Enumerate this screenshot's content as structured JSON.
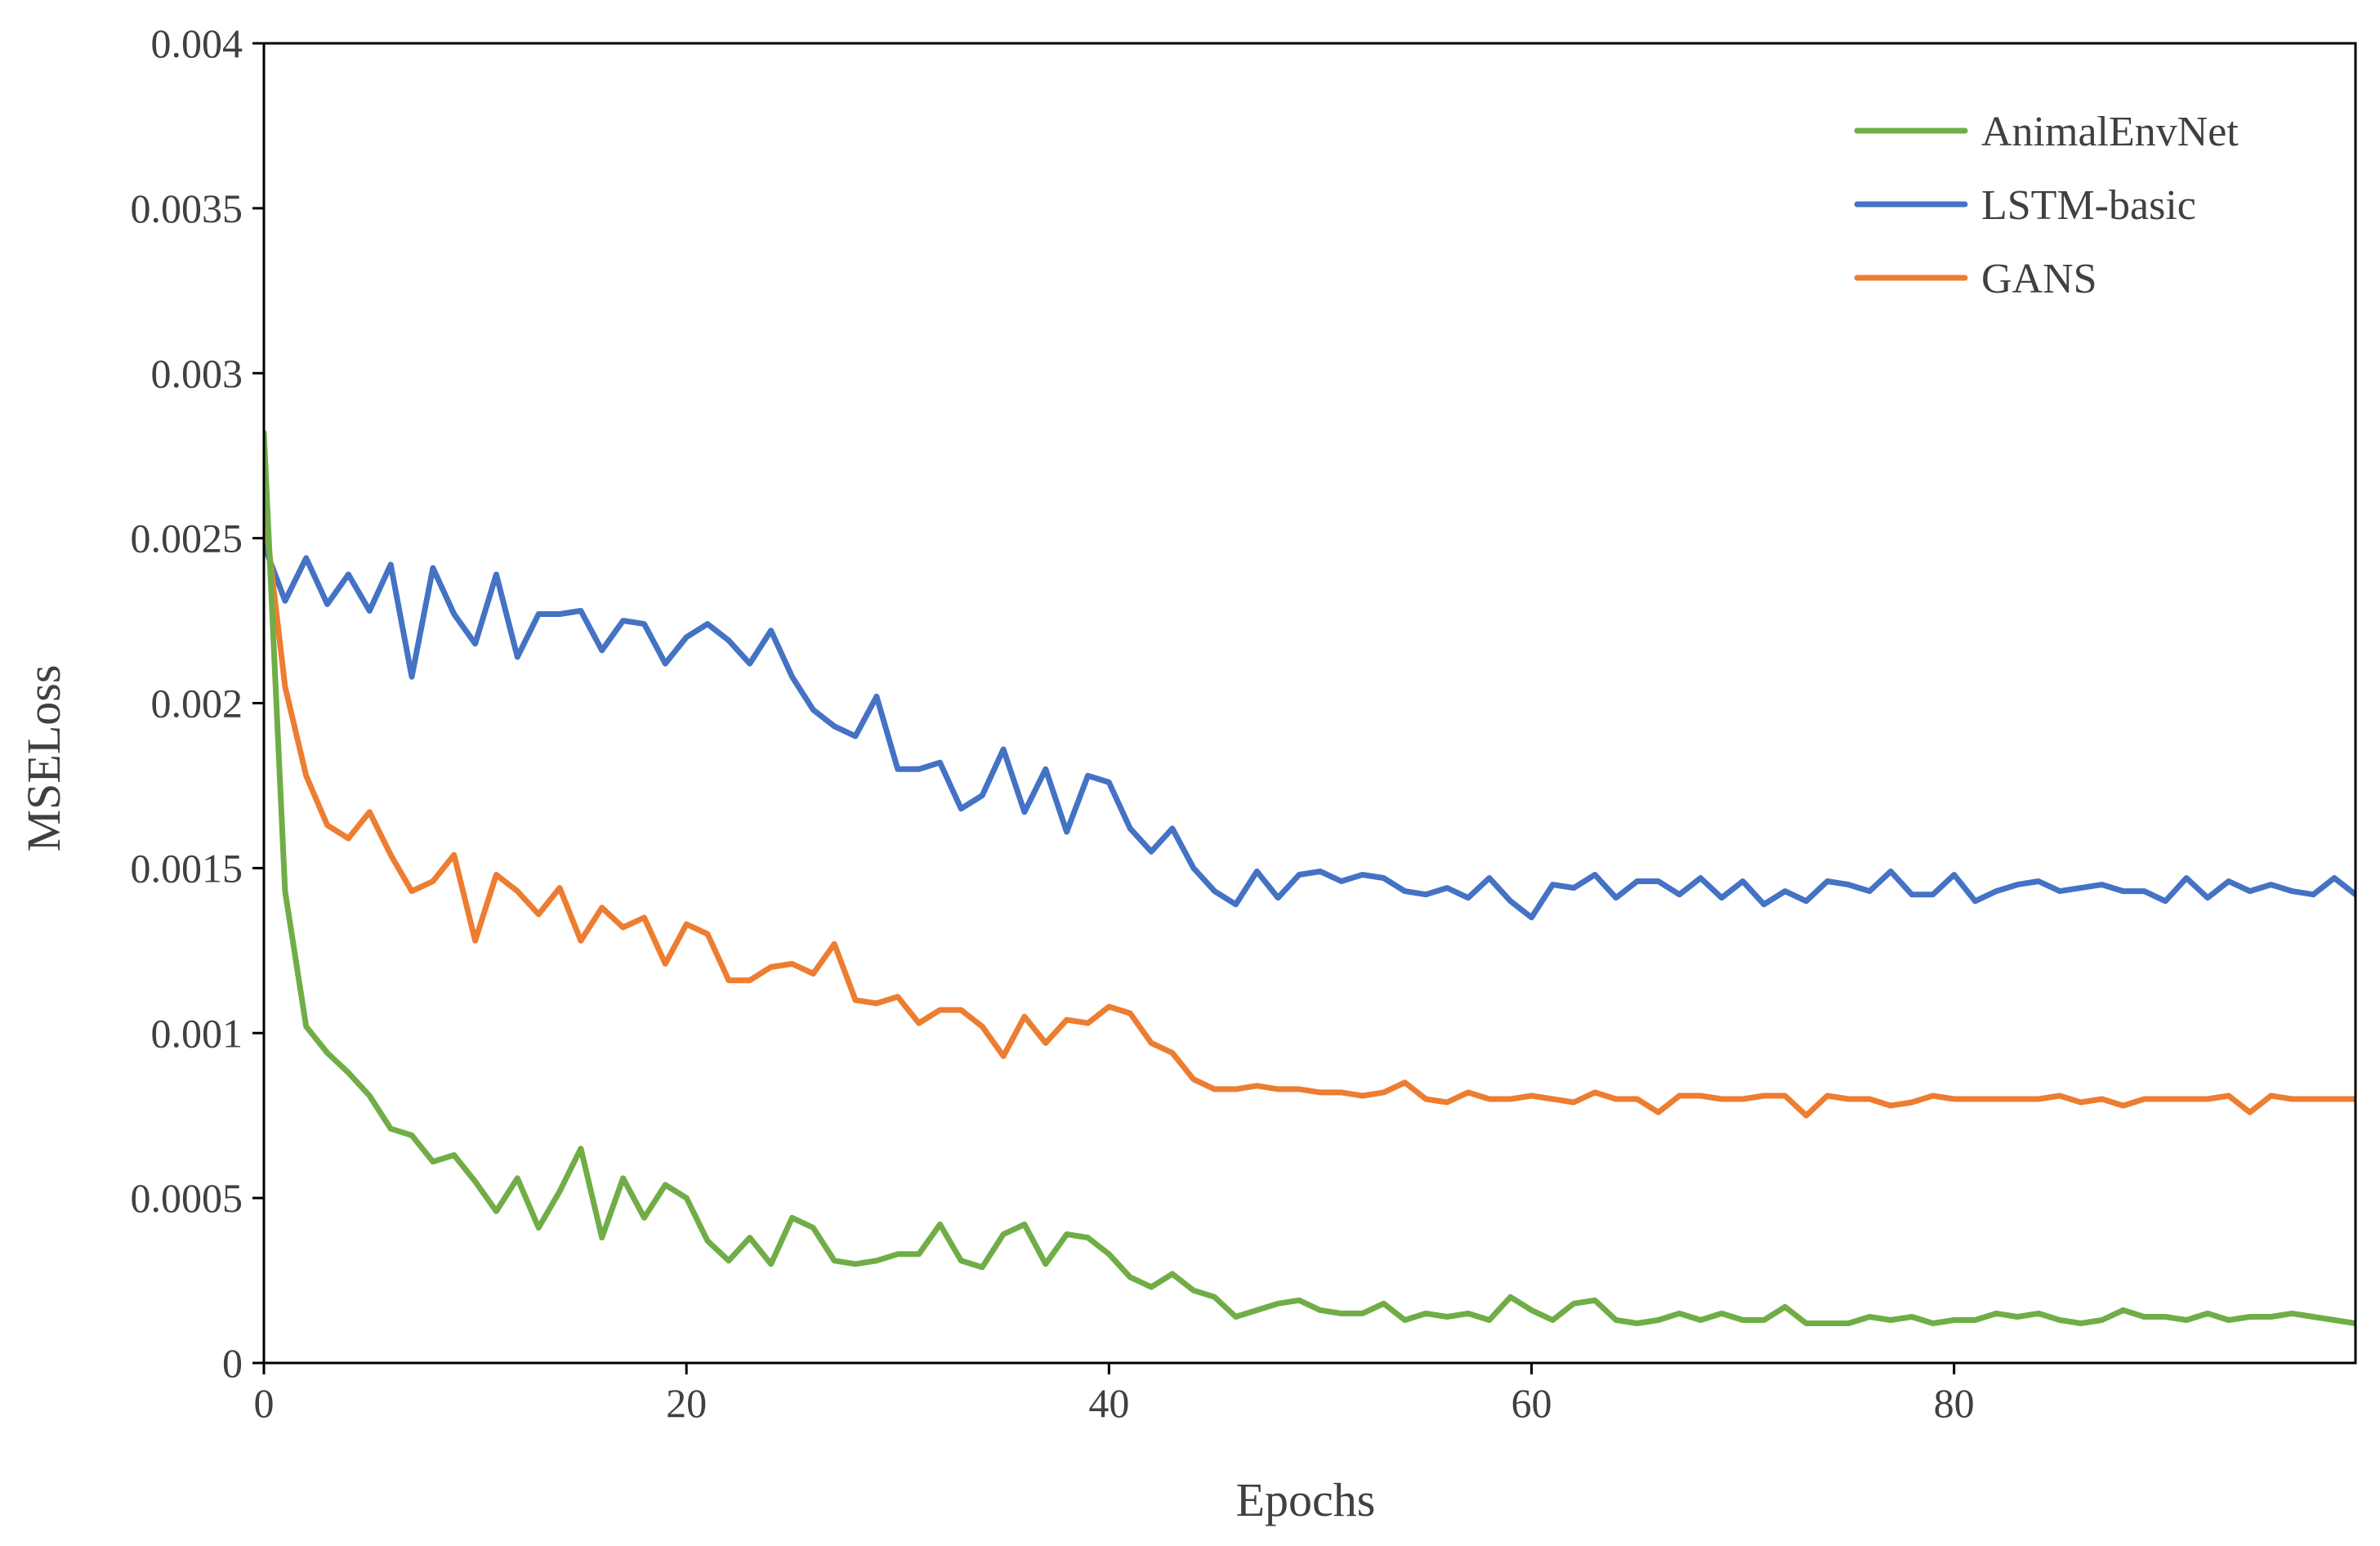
{
  "chart_data": {
    "type": "line",
    "title": "",
    "xlabel": "Epochs",
    "ylabel": "MSELoss",
    "xlim": [
      0,
      99
    ],
    "ylim": [
      0,
      0.004
    ],
    "x_ticks": [
      0,
      20,
      40,
      60,
      80
    ],
    "x_tick_labels": [
      "0",
      "20",
      "40",
      "60",
      "80"
    ],
    "y_ticks": [
      0,
      0.0005,
      0.001,
      0.0015,
      0.002,
      0.0025,
      0.003,
      0.0035,
      0.004
    ],
    "y_tick_labels": [
      "0",
      "0.0005",
      "0.001",
      "0.0015",
      "0.002",
      "0.0025",
      "0.003",
      "0.0035",
      "0.004"
    ],
    "grid": false,
    "legend_position": "top-right",
    "series": [
      {
        "name": "AnimalEnvNet",
        "color": "#70AD47",
        "values": [
          0.00282,
          0.00143,
          0.00102,
          0.00094,
          0.00088,
          0.00081,
          0.00071,
          0.00069,
          0.00061,
          0.00063,
          0.00055,
          0.00046,
          0.00056,
          0.00041,
          0.00052,
          0.00065,
          0.00038,
          0.00056,
          0.00044,
          0.00054,
          0.0005,
          0.00037,
          0.00031,
          0.00038,
          0.0003,
          0.00044,
          0.00041,
          0.00031,
          0.0003,
          0.00031,
          0.00033,
          0.00033,
          0.00042,
          0.00031,
          0.00029,
          0.00039,
          0.00042,
          0.0003,
          0.00039,
          0.00038,
          0.00033,
          0.00026,
          0.00023,
          0.00027,
          0.00022,
          0.0002,
          0.00014,
          0.00016,
          0.00018,
          0.00019,
          0.00016,
          0.00015,
          0.00015,
          0.00018,
          0.00013,
          0.00015,
          0.00014,
          0.00015,
          0.00013,
          0.0002,
          0.00016,
          0.00013,
          0.00018,
          0.00019,
          0.00013,
          0.00012,
          0.00013,
          0.00015,
          0.00013,
          0.00015,
          0.00013,
          0.00013,
          0.00017,
          0.00012,
          0.00012,
          0.00012,
          0.00014,
          0.00013,
          0.00014,
          0.00012,
          0.00013,
          0.00013,
          0.00015,
          0.00014,
          0.00015,
          0.00013,
          0.00012,
          0.00013,
          0.00016,
          0.00014,
          0.00014,
          0.00013,
          0.00015,
          0.00013,
          0.00014,
          0.00014,
          0.00015,
          0.00014,
          0.00013,
          0.00012
        ]
      },
      {
        "name": "LSTM-basic",
        "color": "#4472C4",
        "values": [
          0.00248,
          0.00231,
          0.00244,
          0.0023,
          0.00239,
          0.00228,
          0.00242,
          0.00208,
          0.00241,
          0.00227,
          0.00218,
          0.00239,
          0.00214,
          0.00227,
          0.00227,
          0.00228,
          0.00216,
          0.00225,
          0.00224,
          0.00212,
          0.0022,
          0.00224,
          0.00219,
          0.00212,
          0.00222,
          0.00208,
          0.00198,
          0.00193,
          0.0019,
          0.00202,
          0.0018,
          0.0018,
          0.00182,
          0.00168,
          0.00172,
          0.00186,
          0.00167,
          0.0018,
          0.00161,
          0.00178,
          0.00176,
          0.00162,
          0.00155,
          0.00162,
          0.0015,
          0.00143,
          0.00139,
          0.00149,
          0.00141,
          0.00148,
          0.00149,
          0.00146,
          0.00148,
          0.00147,
          0.00143,
          0.00142,
          0.00144,
          0.00141,
          0.00147,
          0.0014,
          0.00135,
          0.00145,
          0.00144,
          0.00148,
          0.00141,
          0.00146,
          0.00146,
          0.00142,
          0.00147,
          0.00141,
          0.00146,
          0.00139,
          0.00143,
          0.0014,
          0.00146,
          0.00145,
          0.00143,
          0.00149,
          0.00142,
          0.00142,
          0.00148,
          0.0014,
          0.00143,
          0.00145,
          0.00146,
          0.00143,
          0.00144,
          0.00145,
          0.00143,
          0.00143,
          0.0014,
          0.00147,
          0.00141,
          0.00146,
          0.00143,
          0.00145,
          0.00143,
          0.00142,
          0.00147,
          0.00142
        ]
      },
      {
        "name": "GANS",
        "color": "#ED7D31",
        "values": [
          0.0026,
          0.00205,
          0.00178,
          0.00163,
          0.00159,
          0.00167,
          0.00154,
          0.00143,
          0.00146,
          0.00154,
          0.00128,
          0.00148,
          0.00143,
          0.00136,
          0.00144,
          0.00128,
          0.00138,
          0.00132,
          0.00135,
          0.00121,
          0.00133,
          0.0013,
          0.00116,
          0.00116,
          0.0012,
          0.00121,
          0.00118,
          0.00127,
          0.0011,
          0.00109,
          0.00111,
          0.00103,
          0.00107,
          0.00107,
          0.00102,
          0.00093,
          0.00105,
          0.00097,
          0.00104,
          0.00103,
          0.00108,
          0.00106,
          0.00097,
          0.00094,
          0.00086,
          0.00083,
          0.00083,
          0.00084,
          0.00083,
          0.00083,
          0.00082,
          0.00082,
          0.00081,
          0.00082,
          0.00085,
          0.0008,
          0.00079,
          0.00082,
          0.0008,
          0.0008,
          0.00081,
          0.0008,
          0.00079,
          0.00082,
          0.0008,
          0.0008,
          0.00076,
          0.00081,
          0.00081,
          0.0008,
          0.0008,
          0.00081,
          0.00081,
          0.00075,
          0.00081,
          0.0008,
          0.0008,
          0.00078,
          0.00079,
          0.00081,
          0.0008,
          0.0008,
          0.0008,
          0.0008,
          0.0008,
          0.00081,
          0.00079,
          0.0008,
          0.00078,
          0.0008,
          0.0008,
          0.0008,
          0.0008,
          0.00081,
          0.00076,
          0.00081,
          0.0008,
          0.0008,
          0.0008,
          0.0008
        ]
      }
    ]
  }
}
